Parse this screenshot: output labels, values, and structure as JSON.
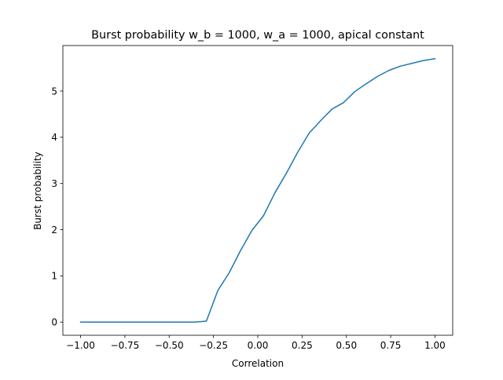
{
  "chart_data": {
    "type": "line",
    "title": "Burst probability w_b = 1000, w_a = 1000, apical constant",
    "xlabel": "Correlation",
    "ylabel": "Burst probability",
    "xlim": [
      -1.1,
      1.1
    ],
    "ylim": [
      -0.285,
      5.985
    ],
    "grid": false,
    "xticks": [
      -1.0,
      -0.75,
      -0.5,
      -0.25,
      0.0,
      0.25,
      0.5,
      0.75,
      1.0
    ],
    "xtick_labels": [
      "−1.00",
      "−0.75",
      "−0.50",
      "−0.25",
      "0.00",
      "0.25",
      "0.50",
      "0.75",
      "1.00"
    ],
    "yticks": [
      0,
      1,
      2,
      3,
      4,
      5
    ],
    "ytick_labels": [
      "0",
      "1",
      "2",
      "3",
      "4",
      "5"
    ],
    "series": [
      {
        "color": "#1f77b4",
        "x": [
          -1.0,
          -0.935,
          -0.871,
          -0.806,
          -0.742,
          -0.677,
          -0.613,
          -0.548,
          -0.484,
          -0.419,
          -0.355,
          -0.29,
          -0.226,
          -0.161,
          -0.097,
          -0.032,
          0.032,
          0.097,
          0.161,
          0.226,
          0.29,
          0.355,
          0.419,
          0.484,
          0.548,
          0.613,
          0.677,
          0.742,
          0.806,
          0.871,
          0.935,
          1.0
        ],
        "y": [
          0.0,
          0.0,
          0.0,
          0.0,
          0.0,
          0.0,
          0.0,
          0.0,
          0.0,
          0.0,
          0.0,
          0.02,
          0.68,
          1.07,
          1.55,
          1.99,
          2.3,
          2.8,
          3.22,
          3.68,
          4.09,
          4.36,
          4.61,
          4.75,
          4.99,
          5.16,
          5.32,
          5.45,
          5.54,
          5.6,
          5.66,
          5.7
        ]
      }
    ]
  }
}
